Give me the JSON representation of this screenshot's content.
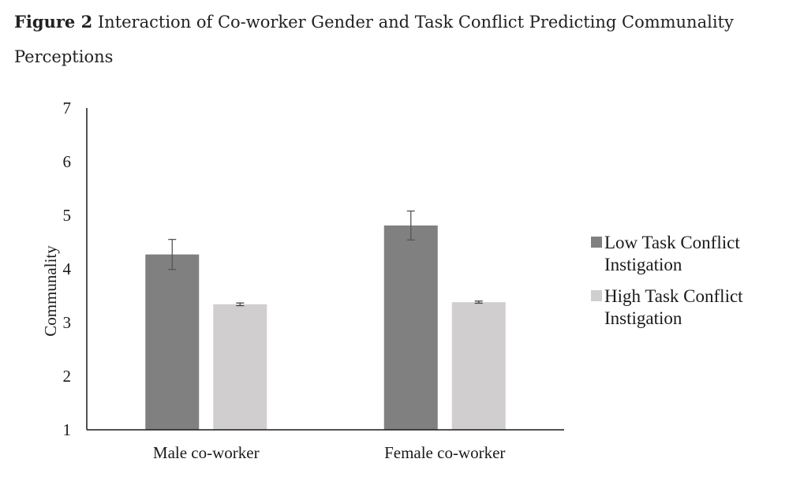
{
  "caption": {
    "label": "Figure 2",
    "text": "Interaction of Co-worker Gender and Task Conflict Predicting Communality Perceptions"
  },
  "chart_data": {
    "type": "bar",
    "title": "Interaction of Co-worker Gender and Task Conflict Predicting Communality Perceptions",
    "categories": [
      "Male co-worker",
      "Female co-worker"
    ],
    "series": [
      {
        "name_lines": [
          "Low Task Conflict",
          "Instigation"
        ],
        "name": "Low Task Conflict Instigation",
        "color": "#808080",
        "values": [
          4.27,
          4.81
        ],
        "error": [
          0.28,
          0.27
        ]
      },
      {
        "name_lines": [
          "High Task Conflict",
          "Instigation"
        ],
        "name": "High Task Conflict Instigation",
        "color": "#d0cece",
        "values": [
          3.34,
          3.38
        ],
        "error": [
          0.025,
          0.02
        ]
      }
    ],
    "xlabel": "",
    "ylabel": "Communality",
    "ylim": [
      1,
      7
    ],
    "yticks": [
      1,
      2,
      3,
      4,
      5,
      6,
      7
    ],
    "grid": false,
    "legend_position": "right"
  }
}
